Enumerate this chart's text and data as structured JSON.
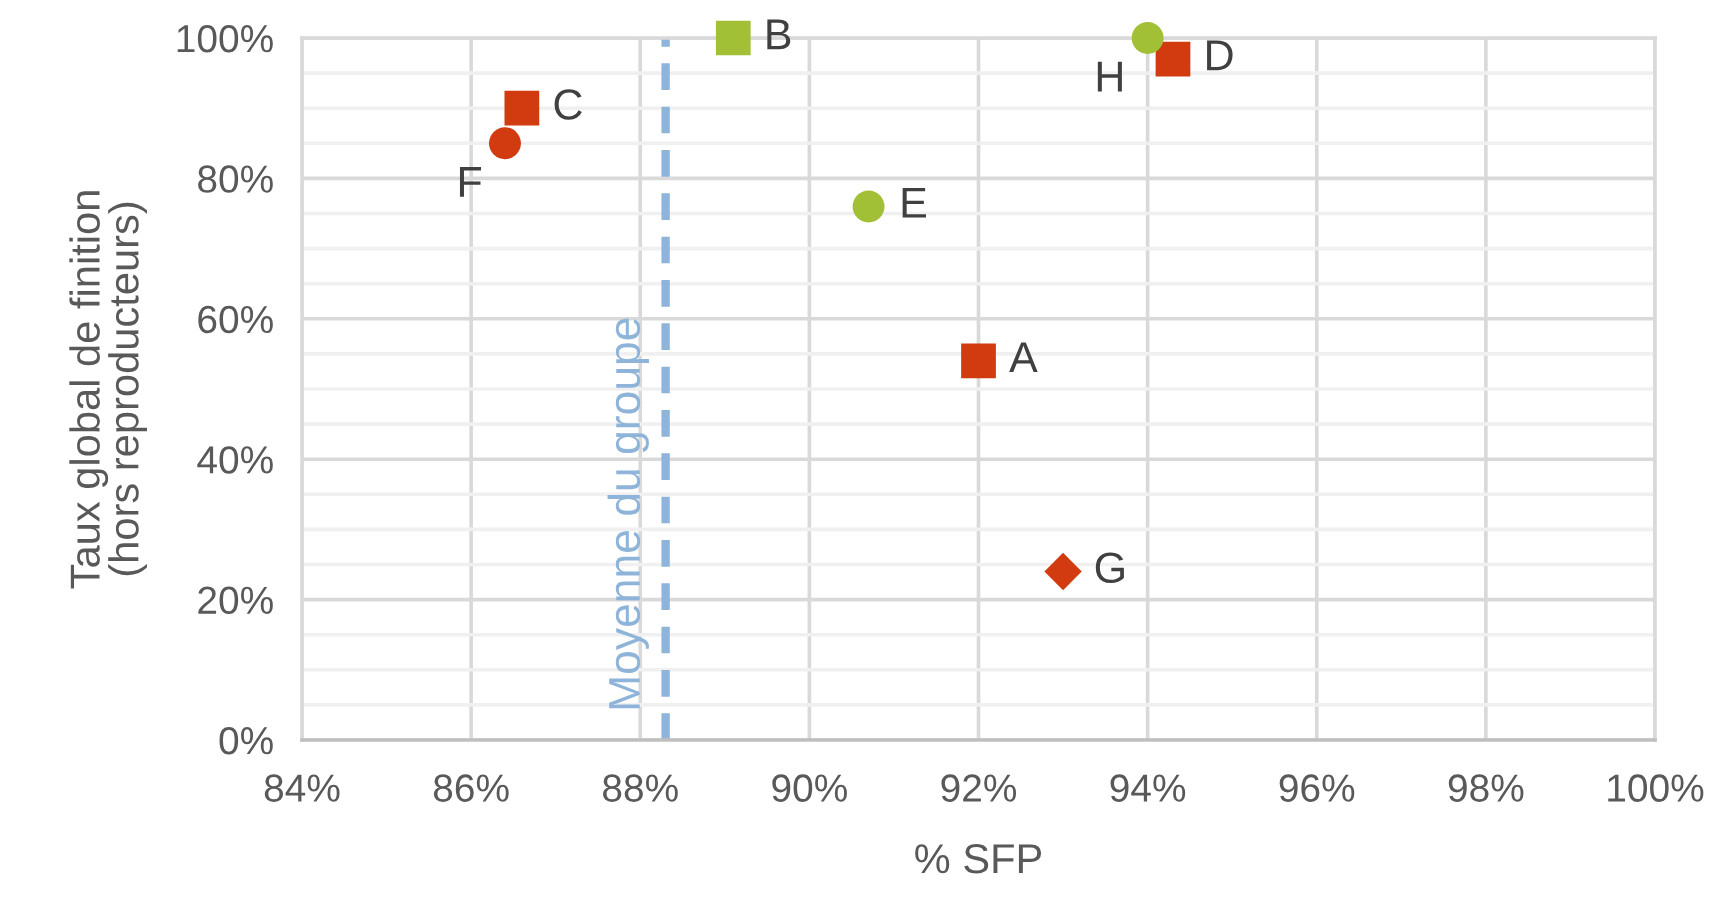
{
  "chart_data": {
    "type": "scatter",
    "xlabel": "% SFP",
    "ylabel": "Taux global de finition\n(hors reproducteurs)",
    "xlim": [
      84,
      100
    ],
    "ylim": [
      0,
      100
    ],
    "xticks": [
      {
        "value": 84,
        "label": "84%"
      },
      {
        "value": 86,
        "label": "86%"
      },
      {
        "value": 88,
        "label": "88%"
      },
      {
        "value": 90,
        "label": "90%"
      },
      {
        "value": 92,
        "label": "92%"
      },
      {
        "value": 94,
        "label": "94%"
      },
      {
        "value": 96,
        "label": "96%"
      },
      {
        "value": 98,
        "label": "98%"
      },
      {
        "value": 100,
        "label": "100%"
      }
    ],
    "yticks": [
      {
        "value": 0,
        "label": "0%"
      },
      {
        "value": 5,
        "label": null
      },
      {
        "value": 10,
        "label": null
      },
      {
        "value": 15,
        "label": null
      },
      {
        "value": 20,
        "label": "20%"
      },
      {
        "value": 25,
        "label": null
      },
      {
        "value": 30,
        "label": null
      },
      {
        "value": 35,
        "label": null
      },
      {
        "value": 40,
        "label": "40%"
      },
      {
        "value": 45,
        "label": null
      },
      {
        "value": 50,
        "label": null
      },
      {
        "value": 55,
        "label": null
      },
      {
        "value": 60,
        "label": "60%"
      },
      {
        "value": 65,
        "label": null
      },
      {
        "value": 70,
        "label": null
      },
      {
        "value": 75,
        "label": null
      },
      {
        "value": 80,
        "label": "80%"
      },
      {
        "value": 85,
        "label": null
      },
      {
        "value": 90,
        "label": null
      },
      {
        "value": 95,
        "label": null
      },
      {
        "value": 100,
        "label": "100%"
      }
    ],
    "grid": true,
    "ref_lines": [
      {
        "axis": "x",
        "value": 88.3,
        "label": "Moyenne du groupe",
        "color": "#8fb4d9",
        "line_style": "dashed"
      }
    ],
    "series": [
      {
        "name": "A",
        "color": "#d13b0f",
        "marker": "square",
        "x": [
          92
        ],
        "values": [
          54
        ]
      },
      {
        "name": "B",
        "color": "#a2c035",
        "marker": "square",
        "x": [
          89.1
        ],
        "values": [
          100
        ]
      },
      {
        "name": "C",
        "color": "#d13b0f",
        "marker": "square",
        "x": [
          86.6
        ],
        "values": [
          90
        ]
      },
      {
        "name": "D",
        "color": "#d13b0f",
        "marker": "square",
        "x": [
          94.3
        ],
        "values": [
          97
        ]
      },
      {
        "name": "E",
        "color": "#a2c035",
        "marker": "circle",
        "x": [
          90.7
        ],
        "values": [
          76
        ]
      },
      {
        "name": "F",
        "color": "#d13b0f",
        "marker": "circle",
        "x": [
          86.4
        ],
        "values": [
          85
        ]
      },
      {
        "name": "G",
        "color": "#d13b0f",
        "marker": "diamond",
        "x": [
          93.0
        ],
        "values": [
          24
        ]
      },
      {
        "name": "H",
        "color": "#a2c035",
        "marker": "circle",
        "x": [
          94.0
        ],
        "values": [
          100
        ]
      }
    ]
  }
}
